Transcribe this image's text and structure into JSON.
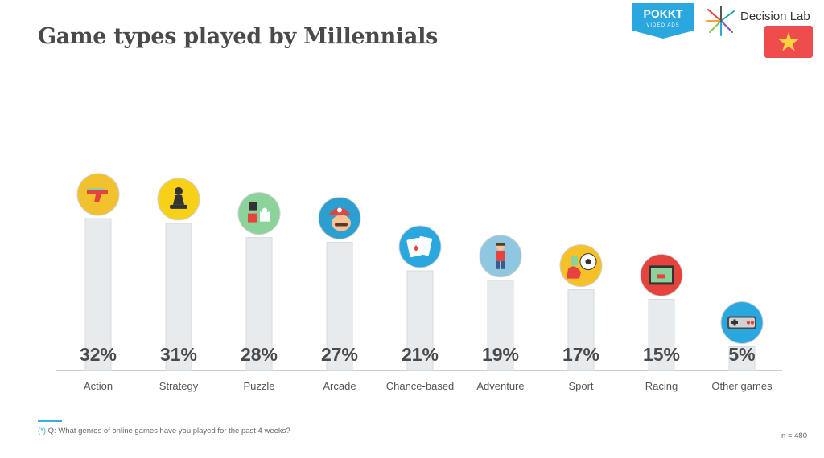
{
  "title": "Game types played by Millennials",
  "brands": {
    "pokkt_name": "POKKT",
    "pokkt_sub": "VIDEO ADS",
    "decision_lab": "Decision Lab"
  },
  "chart_data": {
    "type": "bar",
    "categories": [
      "Action",
      "Strategy",
      "Puzzle",
      "Arcade",
      "Chance-based",
      "Adventure",
      "Sport",
      "Racing",
      "Other games"
    ],
    "values": [
      32,
      31,
      28,
      27,
      21,
      19,
      17,
      15,
      5
    ],
    "value_labels": [
      "32%",
      "31%",
      "28%",
      "27%",
      "21%",
      "19%",
      "17%",
      "15%",
      "5%"
    ],
    "ylim": [
      0,
      40
    ],
    "grid": false,
    "legend": "none",
    "icons": [
      "pistol-icon",
      "chess-pawn-icon",
      "puzzle-pieces-icon",
      "mario-icon",
      "playing-cards-icon",
      "adventurer-icon",
      "soccer-icon",
      "racing-screen-icon",
      "game-controller-icon"
    ],
    "icon_colors": [
      "#f2c12e",
      "#f7d117",
      "#8bd39a",
      "#2a9fd0",
      "#2aa7df",
      "#8fc7e0",
      "#f6c028",
      "#e5433d",
      "#2aa7df"
    ]
  },
  "footnote": {
    "marker": "(*)",
    "text": "Q: What genres of online games have you played for the past 4 weeks?"
  },
  "sample_size": "n = 480",
  "colors": {
    "bar": "#e8ebed",
    "bar_edge": "#d7dbde",
    "value_text": "#4a4a4a",
    "axis": "#bdbdbd",
    "accent": "#3bb0d6"
  }
}
